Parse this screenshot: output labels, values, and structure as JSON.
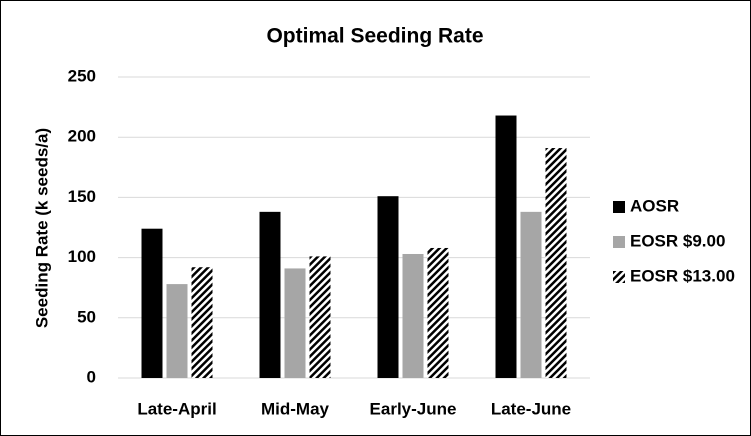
{
  "chart_data": {
    "type": "bar",
    "title": "Optimal Seeding Rate",
    "y_label": "Seeding Rate (k seeds/a)",
    "categories": [
      "Late-April",
      "Mid-May",
      "Early-June",
      "Late-June"
    ],
    "series": [
      {
        "name": "AOSR",
        "color": "#000000",
        "pattern": "solid",
        "values": [
          124,
          138,
          151,
          218
        ]
      },
      {
        "name": "EOSR $9.00",
        "color": "#a6a6a6",
        "pattern": "solid",
        "values": [
          78,
          91,
          103,
          138
        ]
      },
      {
        "name": "EOSR $13.00",
        "color": "#000000",
        "pattern": "diagonal-hatch",
        "values": [
          92,
          101,
          108,
          191
        ]
      }
    ],
    "ylim": [
      0,
      250
    ],
    "yticks": [
      0,
      50,
      100,
      150,
      200,
      250
    ],
    "grid": true,
    "legend": "right"
  }
}
